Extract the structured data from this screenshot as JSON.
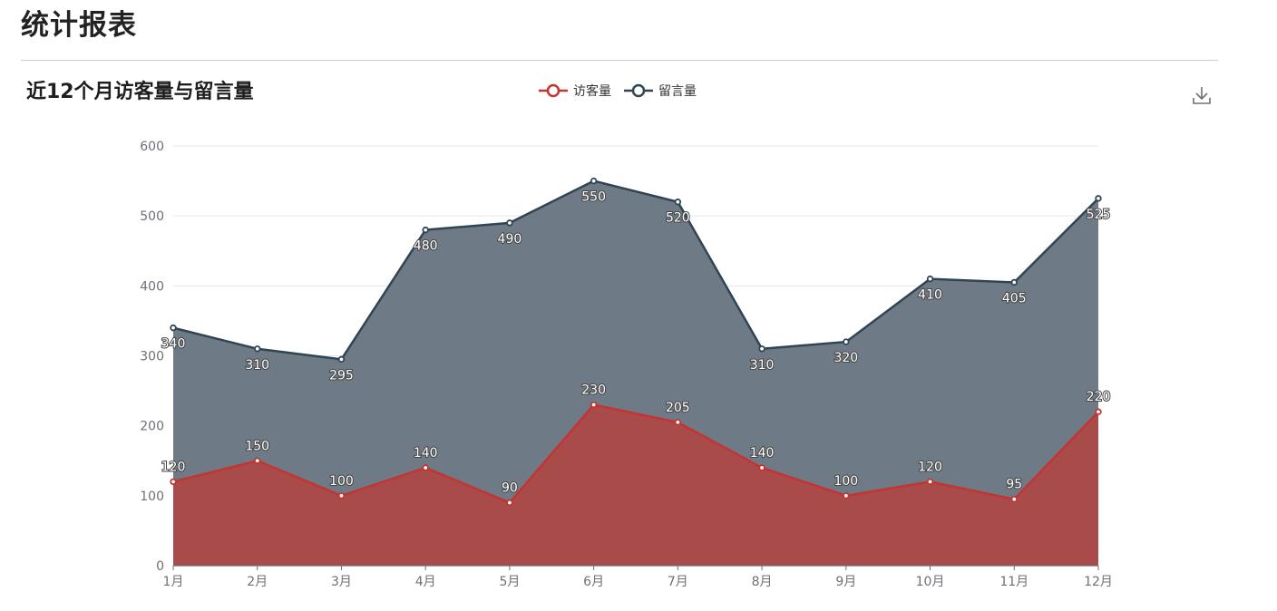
{
  "page": {
    "title": "统计报表"
  },
  "toolbar": {
    "download_icon": "download-icon"
  },
  "colors": {
    "visitors": "#c23531",
    "messages": "#2f4554",
    "visitors_area": "#a94b4b",
    "messages_area": "#6e7a85",
    "grid": "#e0e6f1",
    "axis": "#6e7079"
  },
  "chart_data": {
    "type": "area",
    "title": "近12个月访客量与留言量",
    "legend_position": "top-center",
    "categories": [
      "1月",
      "2月",
      "3月",
      "4月",
      "5月",
      "6月",
      "7月",
      "8月",
      "9月",
      "10月",
      "11月",
      "12月"
    ],
    "series": [
      {
        "name": "访客量",
        "color": "#c23531",
        "values": [
          120,
          150,
          100,
          140,
          90,
          230,
          205,
          140,
          100,
          120,
          95,
          220
        ]
      },
      {
        "name": "留言量",
        "color": "#2f4554",
        "values": [
          340,
          310,
          295,
          480,
          490,
          550,
          520,
          310,
          320,
          410,
          405,
          525
        ]
      }
    ],
    "yticks": [
      0,
      100,
      200,
      300,
      400,
      500,
      600
    ],
    "ylim": [
      0,
      600
    ],
    "grid": true
  }
}
